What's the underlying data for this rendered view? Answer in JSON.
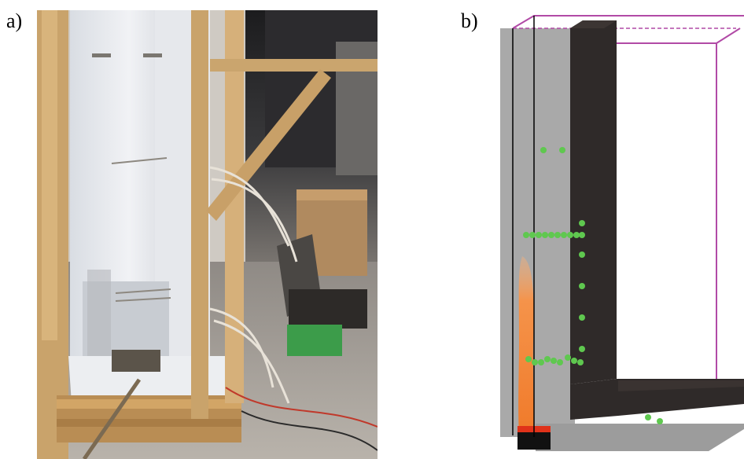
{
  "panels": {
    "a": {
      "label": "a)"
    },
    "b": {
      "label": "b)"
    }
  },
  "colors": {
    "wall_gray": "#a9a9a9",
    "dark_wall": "#2f2a29",
    "frame_magenta": "#b14aa6",
    "sensor_green": "#5fc84f",
    "flame_orange": "#f38a3a",
    "burner_red": "#e0321a"
  }
}
